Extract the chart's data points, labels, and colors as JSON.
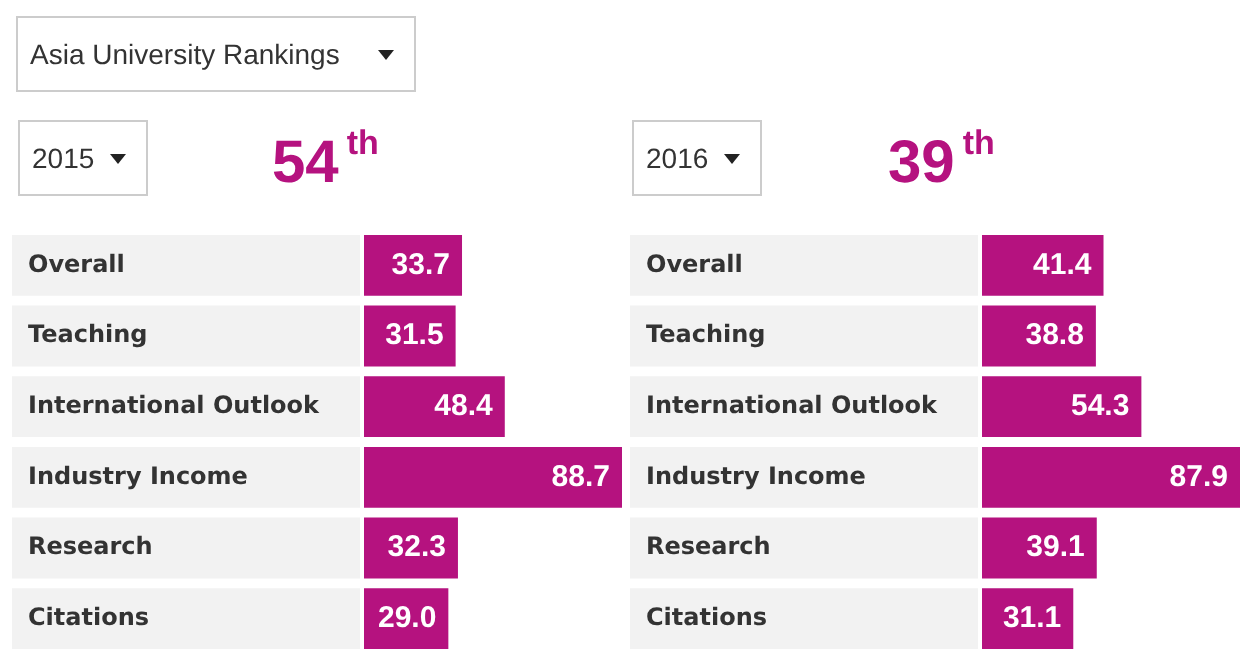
{
  "chart_data": [
    {
      "type": "bar",
      "orientation": "horizontal",
      "title": "Asia University Rankings",
      "subtitle": "2015",
      "annotations": [
        "54$^{th}$"
      ],
      "categories": [
        "Overall",
        "Teaching",
        "International Outlook",
        "Industry Income",
        "Research",
        "Citations"
      ],
      "values": [
        33.7,
        31.5,
        48.4,
        88.7,
        32.3,
        29.0
      ],
      "value_labels": [
        "33.7",
        "31.5",
        "48.4",
        "88.7",
        "32.3",
        "29.0"
      ],
      "color": "#b5127f"
    },
    {
      "type": "bar",
      "orientation": "horizontal",
      "subtitle": "2016",
      "annotations": [
        "39$^{th}$"
      ],
      "categories": [
        "Overall",
        "Teaching",
        "International Outlook",
        "Industry Income",
        "Research",
        "Citations"
      ],
      "values": [
        41.4,
        38.8,
        54.3,
        87.9,
        39.1,
        31.1
      ],
      "value_labels": [
        "41.4",
        "38.8",
        "54.3",
        "87.9",
        "39.1",
        "31.1"
      ],
      "color": "#b5127f"
    }
  ]
}
